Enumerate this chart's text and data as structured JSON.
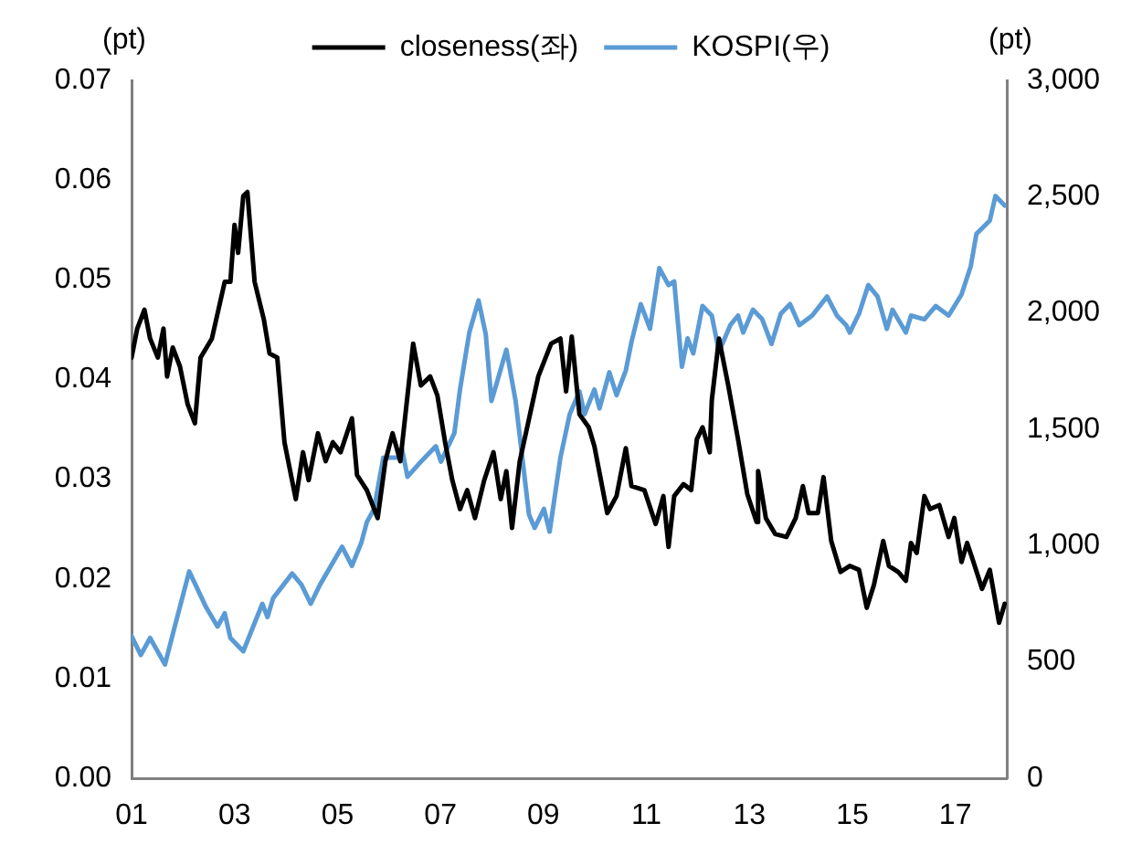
{
  "chart_data": {
    "type": "line",
    "ylabel": "(pt)",
    "y2label": "(pt)",
    "legend": "top",
    "marker": "none",
    "line_style": "solid",
    "grid": false,
    "xlim": [
      2001,
      2018
    ],
    "xticks": [
      {
        "value": 2001,
        "label": "01"
      },
      {
        "value": 2003,
        "label": "03"
      },
      {
        "value": 2005,
        "label": "05"
      },
      {
        "value": 2007,
        "label": "07"
      },
      {
        "value": 2009,
        "label": "09"
      },
      {
        "value": 2011,
        "label": "11"
      },
      {
        "value": 2013,
        "label": "13"
      },
      {
        "value": 2015,
        "label": "15"
      },
      {
        "value": 2017,
        "label": "17"
      }
    ],
    "ylim": [
      0,
      0.07
    ],
    "yticks": [
      {
        "value": 0,
        "label": "0.00"
      },
      {
        "value": 0.01,
        "label": "0.01"
      },
      {
        "value": 0.02,
        "label": "0.02"
      },
      {
        "value": 0.03,
        "label": "0.03"
      },
      {
        "value": 0.04,
        "label": "0.04"
      },
      {
        "value": 0.05,
        "label": "0.05"
      },
      {
        "value": 0.06,
        "label": "0.06"
      },
      {
        "value": 0.07,
        "label": "0.07"
      }
    ],
    "y2lim": [
      0,
      3000
    ],
    "y2ticks": [
      0,
      500,
      {
        "value": 1000,
        "label": "1,000"
      },
      {
        "value": 1500,
        "label": "1,500"
      },
      {
        "value": 2000,
        "label": "2,000"
      },
      {
        "value": 2500,
        "label": "2,500"
      },
      {
        "value": 3000,
        "label": "3,000"
      }
    ],
    "series": [
      {
        "name": "closeness(좌)",
        "color": "#000000",
        "axis": "y",
        "x": [
          2001.0,
          2001.11,
          2001.25,
          2001.36,
          2001.51,
          2001.62,
          2001.69,
          2001.8,
          2001.94,
          2002.09,
          2002.23,
          2002.34,
          2002.56,
          2002.81,
          2002.92,
          2003.0,
          2003.07,
          2003.17,
          2003.25,
          2003.39,
          2003.57,
          2003.68,
          2003.83,
          2003.97,
          2004.19,
          2004.33,
          2004.44,
          2004.62,
          2004.77,
          2004.91,
          2005.06,
          2005.28,
          2005.38,
          2005.57,
          2005.78,
          2005.93,
          2006.07,
          2006.22,
          2006.47,
          2006.62,
          2006.8,
          2006.94,
          2007.09,
          2007.23,
          2007.38,
          2007.52,
          2007.67,
          2007.85,
          2008.03,
          2008.17,
          2008.28,
          2008.39,
          2008.54,
          2008.9,
          2009.15,
          2009.33,
          2009.44,
          2009.55,
          2009.7,
          2009.88,
          2009.99,
          2010.24,
          2010.42,
          2010.6,
          2010.71,
          2010.96,
          2011.18,
          2011.33,
          2011.43,
          2011.54,
          2011.72,
          2011.87,
          2011.98,
          2012.09,
          2012.23,
          2012.27,
          2012.41,
          2012.59,
          2012.78,
          2012.96,
          2013.14,
          2013.17,
          2013.32,
          2013.5,
          2013.72,
          2013.9,
          2014.04,
          2014.15,
          2014.33,
          2014.44,
          2014.59,
          2014.77,
          2014.95,
          2015.13,
          2015.28,
          2015.42,
          2015.6,
          2015.71,
          2015.89,
          2016.04,
          2016.14,
          2016.25,
          2016.4,
          2016.51,
          2016.69,
          2016.87,
          2016.98,
          2017.12,
          2017.23,
          2017.34,
          2017.52,
          2017.67,
          2017.85,
          2017.96
        ],
        "values": [
          0.0422,
          0.0451,
          0.047,
          0.0441,
          0.0422,
          0.0451,
          0.0403,
          0.0432,
          0.0413,
          0.0375,
          0.0356,
          0.0422,
          0.0441,
          0.0498,
          0.0498,
          0.0555,
          0.0527,
          0.0584,
          0.0588,
          0.0498,
          0.046,
          0.0426,
          0.0422,
          0.0337,
          0.028,
          0.0327,
          0.0299,
          0.0346,
          0.0318,
          0.0337,
          0.0327,
          0.0361,
          0.0304,
          0.0289,
          0.0261,
          0.0318,
          0.0346,
          0.0318,
          0.0436,
          0.0394,
          0.0403,
          0.0384,
          0.0337,
          0.0299,
          0.027,
          0.0289,
          0.0261,
          0.0299,
          0.0327,
          0.028,
          0.0308,
          0.0251,
          0.0318,
          0.0403,
          0.0436,
          0.0441,
          0.0388,
          0.0443,
          0.0365,
          0.0352,
          0.0333,
          0.0266,
          0.0283,
          0.0331,
          0.0293,
          0.0289,
          0.0255,
          0.0283,
          0.0232,
          0.0283,
          0.0295,
          0.0289,
          0.034,
          0.0352,
          0.0327,
          0.0379,
          0.0441,
          0.0394,
          0.034,
          0.0285,
          0.0257,
          0.0308,
          0.0261,
          0.0245,
          0.0242,
          0.0261,
          0.0293,
          0.0266,
          0.0266,
          0.0302,
          0.0238,
          0.0207,
          0.0213,
          0.0209,
          0.0171,
          0.0194,
          0.0238,
          0.0213,
          0.0207,
          0.0198,
          0.0236,
          0.0226,
          0.0283,
          0.027,
          0.0274,
          0.0242,
          0.0261,
          0.0217,
          0.0236,
          0.0219,
          0.019,
          0.0209,
          0.0156,
          0.0175
        ]
      },
      {
        "name": "KOSPI(우)",
        "color": "#5b9bd5",
        "axis": "y2",
        "x": [
          2001.0,
          2001.18,
          2001.36,
          2001.65,
          2001.83,
          2002.12,
          2002.45,
          2002.67,
          2002.81,
          2002.92,
          2003.17,
          2003.54,
          2003.64,
          2003.75,
          2004.12,
          2004.3,
          2004.48,
          2004.66,
          2005.09,
          2005.28,
          2005.46,
          2005.57,
          2005.71,
          2005.89,
          2006.18,
          2006.25,
          2006.36,
          2006.62,
          2006.91,
          2007.01,
          2007.27,
          2007.38,
          2007.56,
          2007.74,
          2007.88,
          2007.99,
          2008.1,
          2008.28,
          2008.46,
          2008.72,
          2008.83,
          2009.01,
          2009.12,
          2009.33,
          2009.51,
          2009.7,
          2009.8,
          2009.99,
          2010.09,
          2010.28,
          2010.42,
          2010.6,
          2010.71,
          2010.89,
          2011.07,
          2011.25,
          2011.43,
          2011.54,
          2011.69,
          2011.8,
          2011.91,
          2012.09,
          2012.27,
          2012.41,
          2012.63,
          2012.78,
          2012.88,
          2013.07,
          2013.25,
          2013.43,
          2013.61,
          2013.79,
          2013.97,
          2014.22,
          2014.51,
          2014.7,
          2014.88,
          2014.95,
          2015.13,
          2015.31,
          2015.49,
          2015.67,
          2015.78,
          2016.04,
          2016.14,
          2016.4,
          2016.62,
          2016.87,
          2017.12,
          2017.3,
          2017.41,
          2017.67,
          2017.78,
          2017.96
        ],
        "values": [
          611,
          530,
          603,
          489,
          644,
          889,
          734,
          652,
          709,
          603,
          546,
          750,
          693,
          774,
          880,
          832,
          750,
          832,
          995,
          913,
          1011,
          1101,
          1158,
          1378,
          1378,
          1418,
          1296,
          1361,
          1427,
          1361,
          1484,
          1671,
          1916,
          2054,
          1908,
          1622,
          1704,
          1842,
          1622,
          1133,
          1076,
          1158,
          1060,
          1378,
          1565,
          1663,
          1565,
          1671,
          1590,
          1745,
          1647,
          1753,
          1875,
          2038,
          1932,
          2193,
          2120,
          2136,
          1769,
          1891,
          1826,
          2030,
          1989,
          1834,
          1948,
          1989,
          1916,
          2014,
          1973,
          1867,
          1997,
          2038,
          1948,
          1989,
          2071,
          1989,
          1948,
          1916,
          1997,
          2120,
          2071,
          1932,
          2014,
          1916,
          1989,
          1973,
          2030,
          1989,
          2079,
          2201,
          2340,
          2397,
          2503,
          2462
        ]
      }
    ]
  }
}
